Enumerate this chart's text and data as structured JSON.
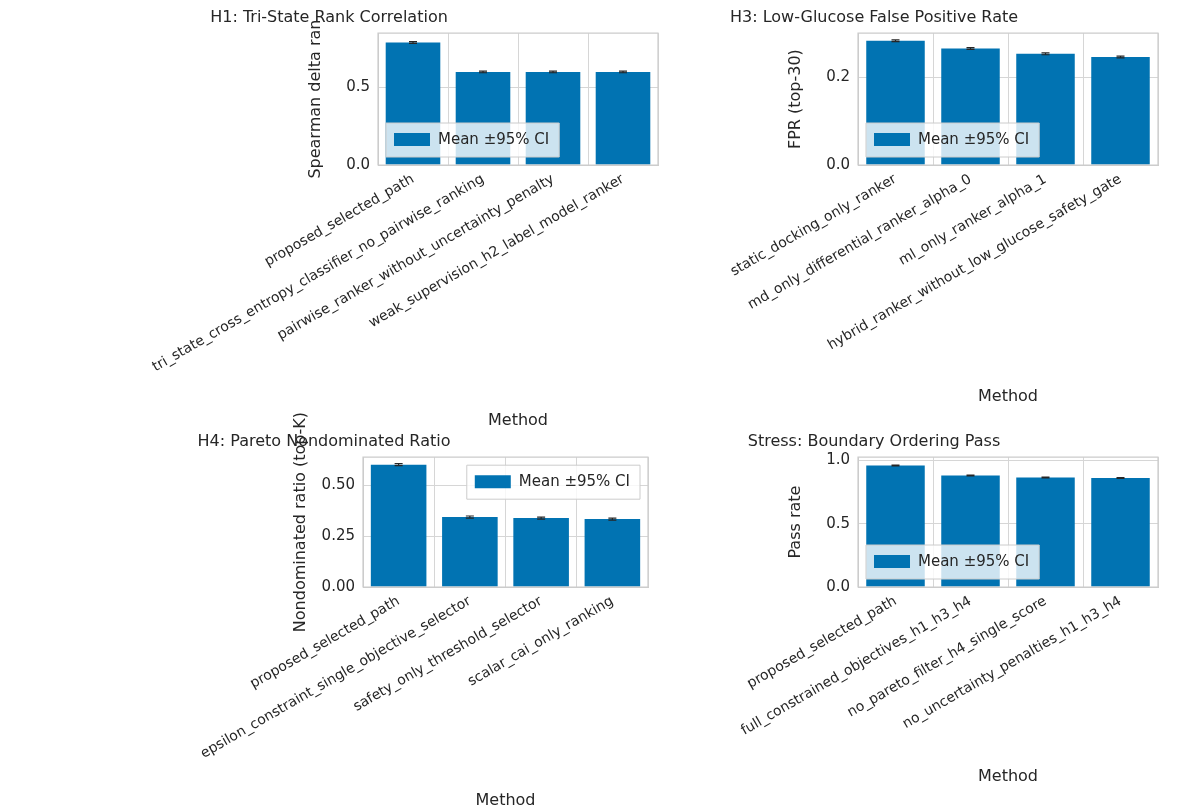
{
  "chart_data": [
    {
      "type": "bar",
      "title": "H1: Tri-State Rank Correlation",
      "xlabel": "Method",
      "ylabel": "Spearman delta ran",
      "categories": [
        "proposed_selected_path",
        "tri_state_cross_entropy_classifier_no_pairwise_ranking",
        "pairwise_ranker_without_uncertainty_penalty",
        "weak_supervision_h2_label_model_ranker"
      ],
      "series": [
        {
          "name": "Mean ±95% CI",
          "color": "#0173b2",
          "values": [
            0.79,
            0.6,
            0.6,
            0.6
          ],
          "errors": [
            0.006,
            0.005,
            0.005,
            0.005
          ]
        }
      ],
      "ylim": [
        0,
        0.85
      ],
      "yticks": [
        {
          "value": 0,
          "label": "0.0"
        },
        {
          "value": 0.5,
          "label": "0.5"
        }
      ],
      "grid": true,
      "legend": "lower left"
    },
    {
      "type": "bar",
      "title": "H3: Low-Glucose False Positive Rate",
      "xlabel": "Method",
      "ylabel": "FPR (top-30)",
      "categories": [
        "static_docking_only_ranker",
        "md_only_differential_ranker_alpha_0",
        "ml_only_ranker_alpha_1",
        "hybrid_ranker_without_low_glucose_safety_gate"
      ],
      "series": [
        {
          "name": "Mean ±95% CI",
          "color": "#0173b2",
          "values": [
            0.283,
            0.265,
            0.253,
            0.246
          ],
          "errors": [
            0.002,
            0.002,
            0.002,
            0.002
          ]
        }
      ],
      "ylim": [
        0,
        0.3
      ],
      "yticks": [
        {
          "value": 0,
          "label": "0.0"
        },
        {
          "value": 0.2,
          "label": "0.2"
        }
      ],
      "grid": true,
      "legend": "lower left"
    },
    {
      "type": "bar",
      "title": "H4: Pareto Nondominated Ratio",
      "xlabel": "Method",
      "ylabel": "Nondominated ratio (top-K)",
      "categories": [
        "proposed_selected_path",
        "epsilon_constraint_single_objective_selector",
        "safety_only_threshold_selector",
        "scalar_cai_only_ranking"
      ],
      "series": [
        {
          "name": "Mean ±95% CI",
          "color": "#0173b2",
          "values": [
            0.603,
            0.345,
            0.34,
            0.335
          ],
          "errors": [
            0.005,
            0.005,
            0.005,
            0.005
          ]
        }
      ],
      "ylim": [
        0,
        0.64
      ],
      "yticks": [
        {
          "value": 0,
          "label": "0.00"
        },
        {
          "value": 0.25,
          "label": "0.25"
        },
        {
          "value": 0.5,
          "label": "0.50"
        }
      ],
      "grid": true,
      "legend": "upper right"
    },
    {
      "type": "bar",
      "title": "Stress: Boundary Ordering Pass",
      "xlabel": "Method",
      "ylabel": "Pass rate",
      "categories": [
        "proposed_selected_path",
        "full_constrained_objectives_h1_h3_h4",
        "no_pareto_filter_h4_single_score",
        "no_uncertainty_penalties_h1_h3_h4"
      ],
      "series": [
        {
          "name": "Mean ±95% CI",
          "color": "#0173b2",
          "values": [
            0.96,
            0.88,
            0.865,
            0.86
          ],
          "errors": [
            0.003,
            0.003,
            0.003,
            0.003
          ]
        }
      ],
      "ylim": [
        0,
        1.025
      ],
      "yticks": [
        {
          "value": 0,
          "label": "0.0"
        },
        {
          "value": 0.5,
          "label": "0.5"
        },
        {
          "value": 1,
          "label": "1.0"
        }
      ],
      "grid": true,
      "legend": "lower left"
    }
  ]
}
